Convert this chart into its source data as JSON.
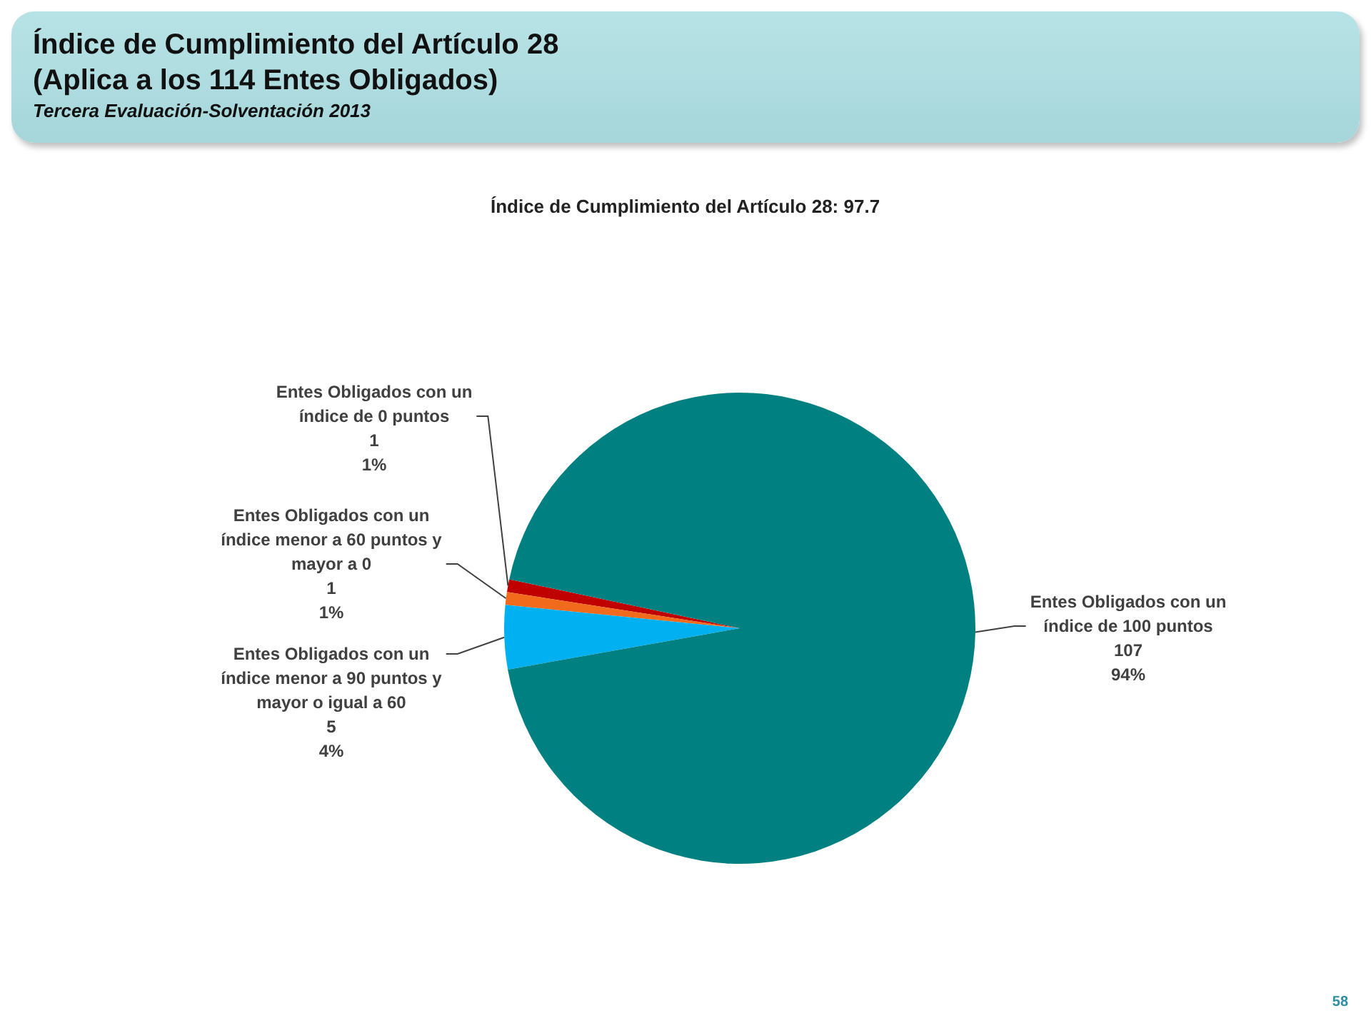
{
  "chart_data": {
    "type": "pie",
    "title": "Índice de Cumplimiento del Artículo 28\n(Aplica a los 114 Entes Obligados)",
    "subtitle": "Tercera Evaluación-Solventación 2013",
    "annotations": [
      "Índice de Cumplimiento del Artículo 28: 97.7",
      "58"
    ],
    "categories": [
      "Entes Obligados con un índice de 0 puntos",
      "Entes Obligados con un índice menor a 60 puntos y mayor a 0",
      "Entes Obligados con un índice menor a 90 puntos y mayor o igual a 60",
      "Entes Obligados con un índice de 100 puntos"
    ],
    "values": [
      1,
      1,
      5,
      107
    ],
    "colors": [
      "#c00000",
      "#f26b1d",
      "#00b0f0",
      "#008080"
    ],
    "value_labels": [
      "1\n1%",
      "1\n1%",
      "5\n4%",
      "107\n94%"
    ]
  }
}
